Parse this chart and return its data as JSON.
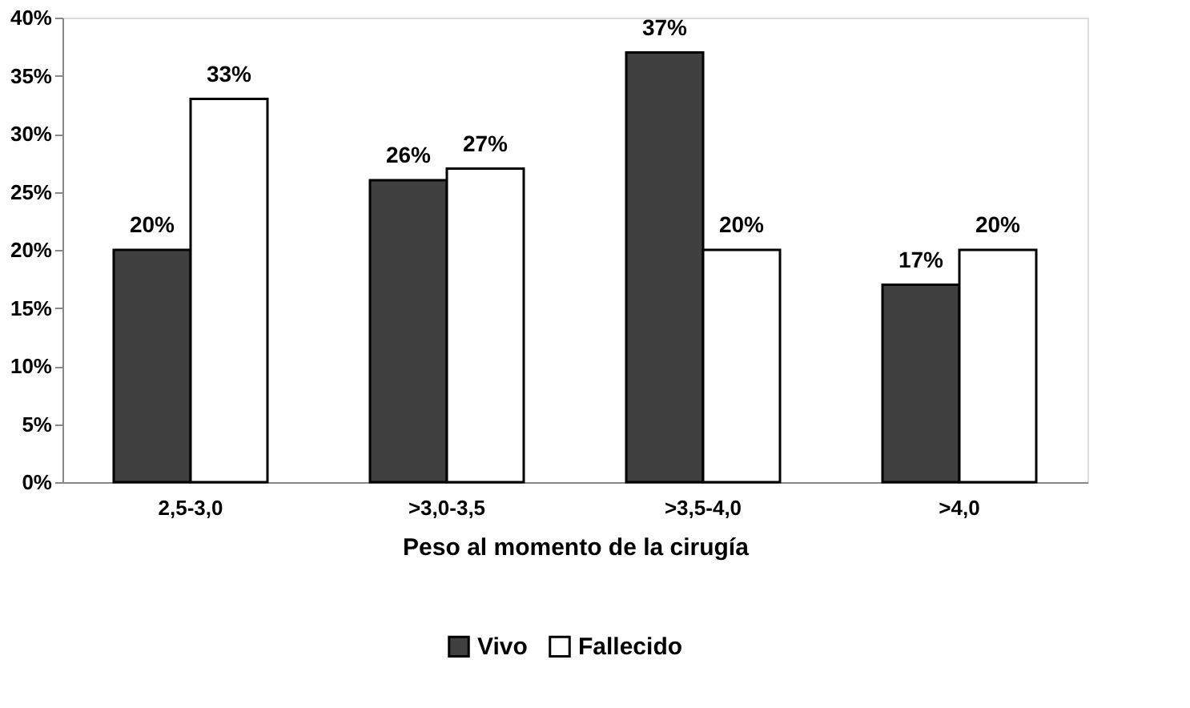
{
  "chart_data": {
    "type": "bar",
    "xlabel": "Peso al momento de la cirugía",
    "categories": [
      "2,5-3,0",
      ">3,0-3,5",
      ">3,5-4,0",
      ">4,0"
    ],
    "series": [
      {
        "name": "Vivo",
        "color": "#404040",
        "values": [
          20,
          26,
          37,
          17
        ],
        "value_labels": [
          "20%",
          "26%",
          "37%",
          "17%"
        ]
      },
      {
        "name": "Fallecido",
        "color": "#ffffff",
        "values": [
          33,
          27,
          20,
          20
        ],
        "value_labels": [
          "33%",
          "27%",
          "20%",
          "20%"
        ]
      }
    ],
    "ylim": [
      0,
      40
    ],
    "yticks": [
      {
        "value": 0,
        "label": "0%"
      },
      {
        "value": 5,
        "label": "5%"
      },
      {
        "value": 10,
        "label": "10%"
      },
      {
        "value": 15,
        "label": "15%"
      },
      {
        "value": 20,
        "label": "20%"
      },
      {
        "value": 25,
        "label": "25%"
      },
      {
        "value": 30,
        "label": "30%"
      },
      {
        "value": 35,
        "label": "35%"
      },
      {
        "value": 40,
        "label": "40%"
      }
    ],
    "grid": false,
    "legend": "bottom"
  }
}
